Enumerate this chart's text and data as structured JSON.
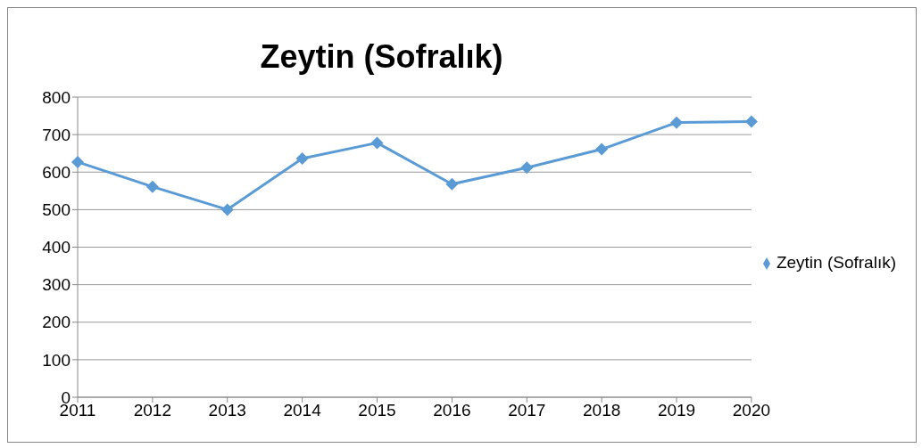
{
  "chart_data": {
    "type": "line",
    "title": "Zeytin (Sofralık)",
    "categories": [
      "2011",
      "2012",
      "2013",
      "2014",
      "2015",
      "2016",
      "2017",
      "2018",
      "2019",
      "2020"
    ],
    "series": [
      {
        "name": "Zeytin (Sofralık)",
        "color": "#5b9bd5",
        "values": [
          627,
          561,
          500,
          636,
          678,
          568,
          612,
          661,
          732,
          735
        ]
      }
    ],
    "ylim": [
      0,
      800
    ],
    "yticks": [
      0,
      100,
      200,
      300,
      400,
      500,
      600,
      700,
      800
    ],
    "grid": "y",
    "legend": "right",
    "marker": "diamond"
  }
}
